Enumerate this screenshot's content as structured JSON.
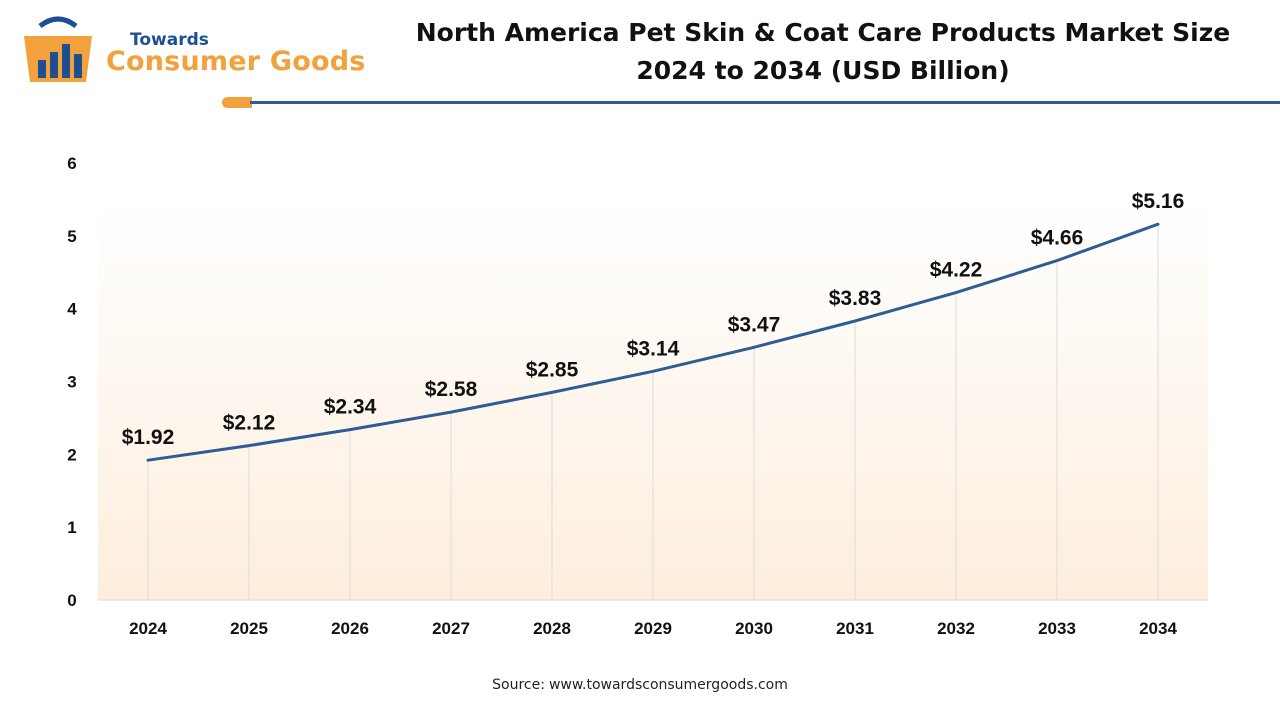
{
  "logo": {
    "top_text": "Towards",
    "main_text": "Consumer Goods"
  },
  "chart_data": {
    "type": "line",
    "title": "North America Pet Skin & Coat Care Products Market Size 2024 to 2034 (USD Billion)",
    "title_lines": [
      "North America Pet Skin & Coat Care Products Market Size",
      "2024 to 2034 (USD Billion)"
    ],
    "categories": [
      "2024",
      "2025",
      "2026",
      "2027",
      "2028",
      "2029",
      "2030",
      "2031",
      "2032",
      "2033",
      "2034"
    ],
    "values": [
      1.92,
      2.12,
      2.34,
      2.58,
      2.85,
      3.14,
      3.47,
      3.83,
      4.22,
      4.66,
      5.16
    ],
    "data_labels": [
      "$1.92",
      "$2.12",
      "$2.34",
      "$2.58",
      "$2.85",
      "$3.14",
      "$3.47",
      "$3.83",
      "$4.22",
      "$4.66",
      "$5.16"
    ],
    "yticks": [
      "0",
      "1",
      "2",
      "3",
      "4",
      "5",
      "6"
    ],
    "ylim": [
      0,
      6
    ],
    "xlabel": "",
    "ylabel": "",
    "line_color": "#2f5d93",
    "fill_color": "#fdeedd"
  },
  "source": {
    "label": "Source:",
    "url": "www.towardsconsumergoods.com"
  }
}
